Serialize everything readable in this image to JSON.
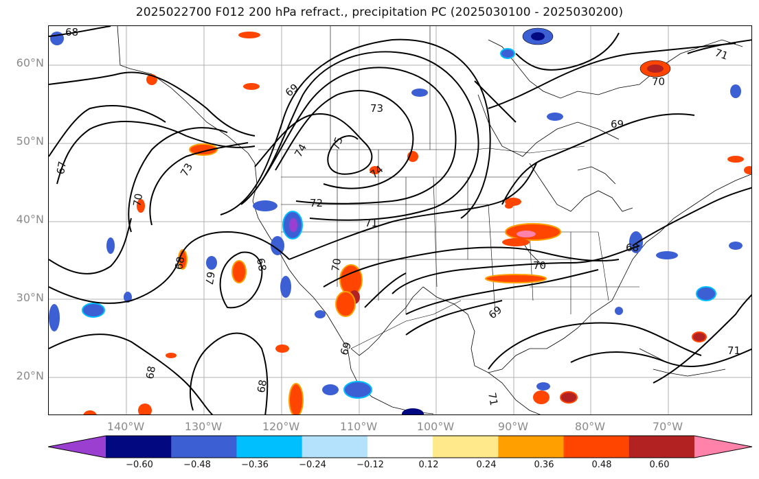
{
  "title": "2025022700 F012 200 hPa refract., precipitation PC (2025030100 - 2025030200)",
  "latitude_labels": [
    "60°N",
    "50°N",
    "40°N",
    "30°N",
    "20°N"
  ],
  "longitude_labels": [
    "140°W",
    "130°W",
    "120°W",
    "110°W",
    "100°W",
    "90°W",
    "80°W",
    "70°W"
  ],
  "colorbar": {
    "tick_labels": [
      "−0.60",
      "−0.48",
      "−0.36",
      "−0.24",
      "−0.12",
      "0.12",
      "0.24",
      "0.36",
      "0.48",
      "0.60"
    ],
    "colors": [
      "#9b3fd1",
      "#02087f",
      "#3c5fd4",
      "#00bfff",
      "#b4e1fb",
      "#ffffff",
      "#ffe98a",
      "#ffa000",
      "#ff4500",
      "#b22222",
      "#ff82ab"
    ]
  },
  "contour_labels": [
    {
      "text": "68"
    },
    {
      "text": "67"
    },
    {
      "text": "70"
    },
    {
      "text": "73"
    },
    {
      "text": "69"
    },
    {
      "text": "73"
    },
    {
      "text": "74"
    },
    {
      "text": "75"
    },
    {
      "text": "74"
    },
    {
      "text": "72"
    },
    {
      "text": "71"
    },
    {
      "text": "68"
    },
    {
      "text": "67"
    },
    {
      "text": "68"
    },
    {
      "text": "68"
    },
    {
      "text": "70"
    },
    {
      "text": "69"
    },
    {
      "text": "68"
    },
    {
      "text": "69"
    },
    {
      "text": "70"
    },
    {
      "text": "71"
    },
    {
      "text": "70"
    },
    {
      "text": "69"
    },
    {
      "text": "71"
    },
    {
      "text": "68"
    },
    {
      "text": "71"
    }
  ]
}
